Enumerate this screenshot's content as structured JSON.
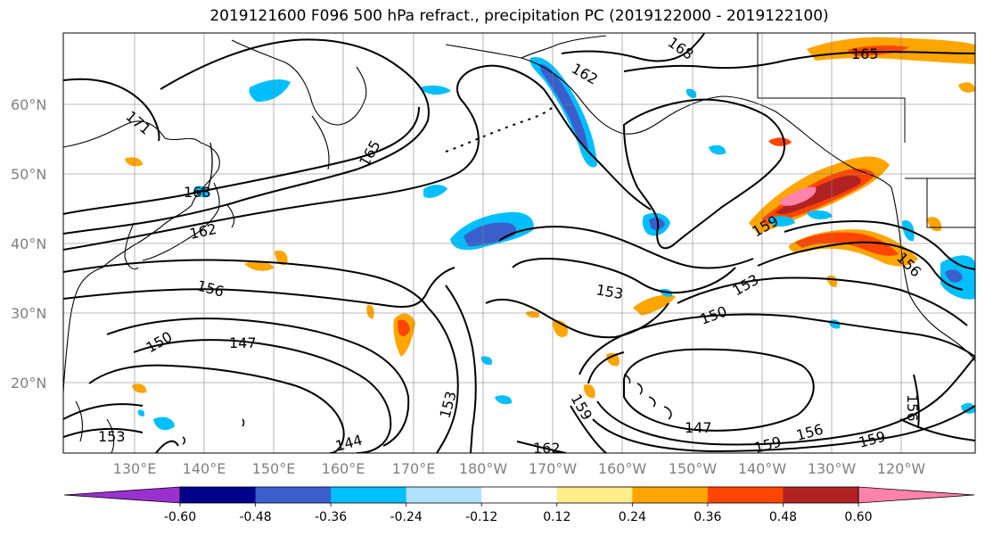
{
  "title": "2019121600 F096 500 hPa refract., precipitation PC (2019122000 - 2019122100)",
  "colors": {
    "land_outline": "#000000",
    "grid": "#808080",
    "contour": "#000000",
    "axis_text": "#808080"
  },
  "axes": {
    "x_ticks": [
      "130°E",
      "140°E",
      "150°E",
      "160°E",
      "170°E",
      "180°W",
      "170°W",
      "160°W",
      "150°W",
      "140°W",
      "130°W",
      "120°W"
    ],
    "y_ticks": [
      "60°N",
      "50°N",
      "40°N",
      "30°N",
      "20°N"
    ]
  },
  "contour_labels": [
    "171",
    "168",
    "165",
    "162",
    "159",
    "156",
    "153",
    "150",
    "147",
    "144"
  ],
  "colorbar": {
    "colors": [
      "#9b30d0",
      "#00008b",
      "#3a5fcd",
      "#00bfff",
      "#b0e2ff",
      "#ffffff",
      "#ffec8b",
      "#ffa500",
      "#ff4500",
      "#b22222",
      "#ff82ab"
    ],
    "labels": [
      "-0.60",
      "-0.48",
      "-0.36",
      "-0.24",
      "-0.12",
      "0.12",
      "0.24",
      "0.36",
      "0.48",
      "0.60"
    ]
  }
}
